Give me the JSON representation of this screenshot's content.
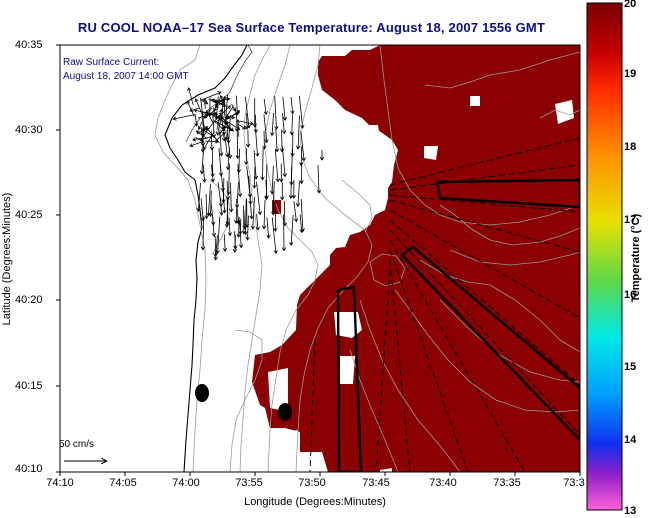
{
  "title": "RU COOL  NOAA–17  Sea Surface Temperature:  August 18, 2007 1556 GMT",
  "current_label": "Raw Surface Current:",
  "current_time": "August 18, 2007 14:00 GMT",
  "scale_label": "50 cm/s",
  "xlabel": "Longitude (Degrees:Minutes)",
  "ylabel": "Latitude (Degrees:Minutes)",
  "x_ticks": [
    "74:10",
    "74:05",
    "74:00",
    "73:55",
    "73:50",
    "73:45",
    "73:40",
    "73:35",
    "73:3"
  ],
  "y_ticks": [
    "40:35",
    "40:30",
    "40:25",
    "40:20",
    "40:15",
    "40:10"
  ],
  "colorbar": {
    "title": "Temperature (°C)",
    "ticks": [
      "20",
      "19",
      "18",
      "17",
      "16",
      "15",
      "14",
      "13"
    ],
    "range": [
      13,
      20
    ]
  },
  "colors": {
    "sst_fill": "#8b0000",
    "land": "#ffffff",
    "title_color": "#0d0d8c"
  }
}
